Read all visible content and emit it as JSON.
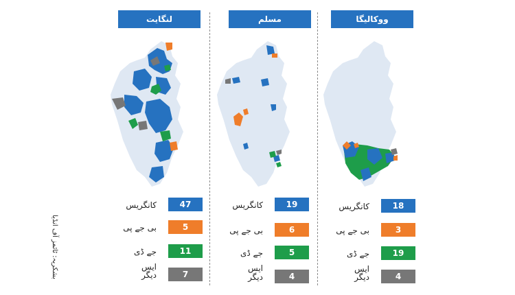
{
  "source_note": "بشکریہ: ٹائمز آف انڈیا",
  "colors": {
    "congress": "#2672c0",
    "bjp": "#ef7d2a",
    "jds": "#1e9d4a",
    "other": "#777777",
    "header": "#2672c0",
    "map_base": "#dfe8f3"
  },
  "panels": [
    {
      "title": "لنگایت",
      "rows": [
        {
          "label": "کانگریس",
          "value": "47",
          "party": "congress"
        },
        {
          "label": "بی جے پی",
          "value": "5",
          "party": "bjp"
        },
        {
          "label": "جے ڈی ایس",
          "value": "11",
          "party": "jds"
        },
        {
          "label": "دیگر",
          "value": "7",
          "party": "other"
        }
      ]
    },
    {
      "title": "مسلم",
      "rows": [
        {
          "label": "کانگریس",
          "value": "19",
          "party": "congress"
        },
        {
          "label": "بی جے پی",
          "value": "6",
          "party": "bjp"
        },
        {
          "label": "جے ڈی ایس",
          "value": "5",
          "party": "jds"
        },
        {
          "label": "دیگر",
          "value": "4",
          "party": "other"
        }
      ]
    },
    {
      "title": "ووکالیگا",
      "rows": [
        {
          "label": "کانگریس",
          "value": "18",
          "party": "congress"
        },
        {
          "label": "بی جے پی",
          "value": "3",
          "party": "bjp"
        },
        {
          "label": "جے ڈی ایس",
          "value": "19",
          "party": "jds"
        },
        {
          "label": "دیگر",
          "value": "4",
          "party": "other"
        }
      ]
    }
  ]
}
